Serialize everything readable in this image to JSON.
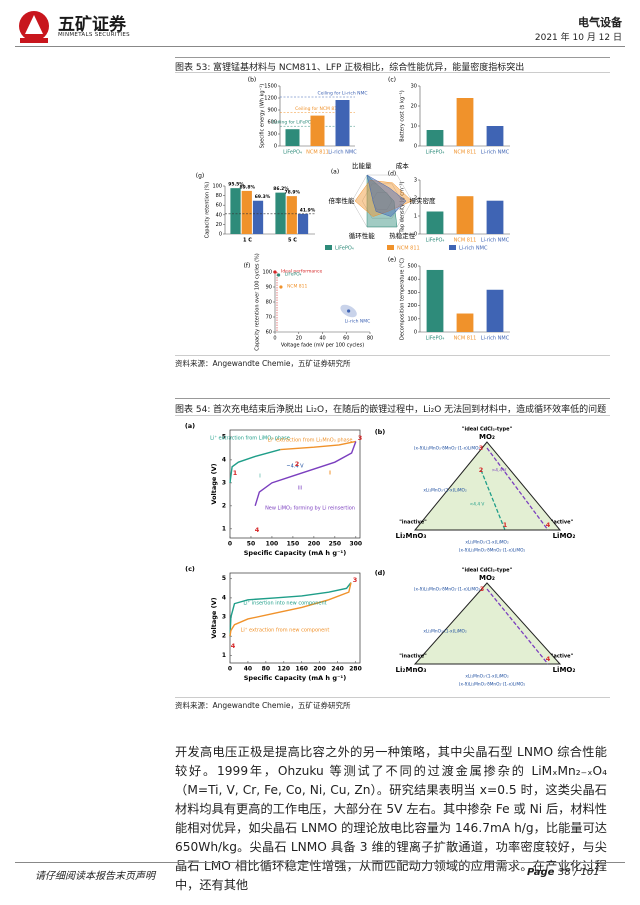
{
  "header": {
    "company": "五矿证券",
    "company_en": "MINMETALS SECURITIES",
    "sector": "电气设备",
    "date": "2021 年 10 月 12 日"
  },
  "figure53": {
    "label": "图表 53:",
    "title": "富锂锰基材料与 NCM811、LFP 正极相比，综合性能优异，能量密度指标突出",
    "source": "资料来源：Angewandte Chemie，五矿证券研究所",
    "legend": [
      "LiFePO₄",
      "NCM 811",
      "Li-rich NMC"
    ],
    "colors": [
      "#2e8b7a",
      "#f0922b",
      "#3f64b4"
    ],
    "bar_panels": [
      {
        "id": "(b)",
        "ylabel": "Specific energy (Wh kg⁻¹)",
        "ylim": [
          0,
          1500
        ],
        "yticks": [
          0,
          300,
          600,
          900,
          1200,
          1500
        ],
        "categories": [
          "LiFePO₄",
          "NCM 811",
          "Li-rich NMC"
        ],
        "values": [
          420,
          760,
          1150
        ],
        "notes": [
          "Ceiling for LiFePO₄",
          "Ceiling for NCM 811",
          "Ceiling for Li-rich NMC"
        ]
      },
      {
        "id": "(c)",
        "ylabel": "Battery cost ($ kg⁻¹)",
        "ylim": [
          0,
          30
        ],
        "yticks": [
          0,
          10,
          20,
          30
        ],
        "categories": [
          "LiFePO₄",
          "NCM 811",
          "Li-rich NMC"
        ],
        "values": [
          8,
          24,
          10
        ]
      },
      {
        "id": "(d)",
        "ylabel": "Tap density (g cm⁻³)",
        "ylim": [
          0,
          3
        ],
        "yticks": [
          0,
          1,
          2,
          3
        ],
        "categories": [
          "LiFePO₄",
          "NCM 811",
          "Li-rich NMC"
        ],
        "values": [
          1.25,
          2.1,
          1.85
        ]
      },
      {
        "id": "(e)",
        "ylabel": "Decomposition temperature (°C)",
        "ylim": [
          0,
          500
        ],
        "yticks": [
          0,
          100,
          200,
          300,
          400,
          500
        ],
        "categories": [
          "LiFePO₄",
          "NCM 811",
          "Li-rich NMC"
        ],
        "values": [
          470,
          140,
          320
        ]
      }
    ],
    "radar": {
      "id": "(a)",
      "axes": [
        "比能量",
        "成本",
        "振实密度",
        "热稳定性",
        "循环性能",
        "倍率性能"
      ]
    },
    "retention": {
      "id": "(g)",
      "ylabel": "Capacity retention (%)",
      "ylim": [
        0,
        100
      ],
      "yticks": [
        0,
        20,
        40,
        60,
        80,
        100
      ],
      "groups": [
        "1 C",
        "5 C"
      ],
      "values": [
        [
          95.5,
          89.8,
          69.3
        ],
        [
          86.2,
          78.9,
          41.9
        ]
      ],
      "value_labels": [
        [
          "95.5%",
          "89.8%",
          "69.3%"
        ],
        [
          "86.2%",
          "78.9%",
          "41.9%"
        ]
      ]
    },
    "scatter": {
      "id": "(f)",
      "ylabel": "Capacity retention over 100 cycles (%)",
      "xlabel": "Voltage fade (mV per 100 cycles)",
      "xlim": [
        0,
        80
      ],
      "ylim": [
        60,
        100
      ],
      "xticks": [
        0,
        20,
        40,
        60,
        80
      ],
      "yticks": [
        60,
        70,
        80,
        90,
        100
      ],
      "points": [
        {
          "name": "Ideal performance",
          "x": 0,
          "y": 100,
          "color": "#d62728"
        },
        {
          "name": "LiFePO₄",
          "x": 3,
          "y": 98,
          "color": "#2e8b7a"
        },
        {
          "name": "NCM 811",
          "x": 5,
          "y": 90,
          "color": "#f0922b"
        },
        {
          "name": "Li-rich NMC",
          "x": 62,
          "y": 74,
          "color": "#3f64b4"
        }
      ]
    }
  },
  "figure54": {
    "label": "图表 54:",
    "title": "首次充电结束后浄脱出 Li₂O，在随后的嵌锂过程中，Li₂O 无法回到材料中，造成循环效率低的问题",
    "source": "资料来源：Angewandte Chemie，五矿证券研究所",
    "curve_panels": [
      {
        "id": "(a)",
        "ylabel": "Voltage (V)",
        "xlabel": "Specific Capacity (mA h g⁻¹)",
        "xlim": [
          0,
          310
        ],
        "ylim": [
          0.6,
          5.3
        ],
        "xticks": [
          0,
          50,
          100,
          150,
          200,
          250,
          300
        ],
        "yticks": [
          1,
          2,
          3,
          4,
          5
        ],
        "series": [
          {
            "color": "#1f9e89",
            "x": [
              0,
              5,
              20,
              60,
              120
            ],
            "y": [
              3.0,
              3.7,
              3.9,
              4.15,
              4.45
            ]
          },
          {
            "color": "#f0922b",
            "x": [
              120,
              200,
              260,
              300
            ],
            "y": [
              4.45,
              4.55,
              4.65,
              4.8
            ]
          },
          {
            "color": "#7b3fbf",
            "x": [
              300,
              290,
              250,
              200,
              150,
              100,
              70,
              60
            ],
            "y": [
              4.8,
              4.3,
              3.9,
              3.6,
              3.3,
              3.0,
              2.6,
              2.0
            ]
          }
        ],
        "notes": [
          "Li⁺ extraction from LiMO₂ phase",
          "Li⁺ extraction from Li₂MnO₃ phase",
          "~4.4 V",
          "I",
          "II",
          "III",
          "New LiMO₂ forming by Li reinsertion"
        ],
        "points": [
          "1",
          "2",
          "3",
          "4"
        ]
      },
      {
        "id": "(c)",
        "ylabel": "Voltage (V)",
        "xlabel": "Specific Capacity (mA h g⁻¹)",
        "xlim": [
          0,
          290
        ],
        "ylim": [
          0.6,
          5.3
        ],
        "xticks": [
          0,
          40,
          80,
          120,
          160,
          200,
          240,
          280
        ],
        "yticks": [
          1,
          2,
          3,
          4,
          5
        ],
        "series": [
          {
            "color": "#1f9e89",
            "x": [
              0,
              2,
              10,
              40,
              100,
              160,
              220,
              260,
              270
            ],
            "y": [
              2.0,
              3.0,
              3.7,
              3.9,
              4.0,
              4.1,
              4.3,
              4.5,
              4.8
            ]
          },
          {
            "color": "#f0922b",
            "x": [
              270,
              265,
              220,
              160,
              100,
              40,
              10,
              2,
              0
            ],
            "y": [
              4.8,
              4.3,
              3.9,
              3.5,
              3.2,
              2.9,
              2.6,
              2.3,
              2.0
            ]
          }
        ],
        "notes": [
          "Li⁺ insertion into new component",
          "Li⁺ extraction from new component"
        ],
        "points": [
          "3",
          "4"
        ]
      }
    ],
    "triangles": [
      {
        "id": "(b)",
        "top": "MO₂",
        "left": "Li₂MnO₃",
        "right": "LiMO₂",
        "top_note": "\"ideal CdCl₂-type\"",
        "left_note": "\"inactive\"",
        "right_note": "\"active\"",
        "labels": [
          "(x-δ)Li₂MnO₃·δMnO₂·(1-x)LiMO₂",
          "xLi₂MnO₃·(1-x)LiMO₂",
          "xLi₂MnO₃·(1-x)LiMO₂",
          "(x-δ)Li₂MnO₃·δMnO₂·(1-x)LiMO₂",
          ">4.4 V",
          "<4.4 V"
        ],
        "points": [
          "1",
          "2",
          "3",
          "4"
        ]
      },
      {
        "id": "(d)",
        "top": "MO₂",
        "left": "Li₂MnO₃",
        "right": "LiMO₂",
        "top_note": "\"ideal CdCl₂-type\"",
        "left_note": "\"inactive\"",
        "right_note": "\"active\"",
        "labels": [
          "(x-δ)Li₂MnO₃·δMnO₂·(1-x)LiMO₂",
          "xLi₂MnO₃·(1-x)LiMO₂",
          "xLi₂MnO₃·(1-x)LiMO₂",
          "(x-δ)Li₂MnO₃·δMnO₂·(1-x)LiMO₂"
        ],
        "points": [
          "3",
          "4"
        ]
      }
    ]
  },
  "body": {
    "paragraph": "开发高电压正极是提高比容之外的另一种策略，其中尖晶石型 LNMO 综合性能较好。1999年，Ohzuku 等测试了不同的过渡金属掺杂的 LiMₓMn₂₋ₓO₄（M=Ti, V, Cr, Fe, Co, Ni, Cu, Zn）。研究结果表明当 x=0.5 时，这类尖晶石材料均具有更高的工作电压，大部分在 5V 左右。其中掺杂 Fe 或 Ni 后，材料性能相对优异，如尖晶石 LNMO 的理论放电比容量为 146.7mA h/g，比能量可达 650Wh/kg。尖晶石 LNMO 具备 3 维的锂离子扩散通道，功率密度较好，与尖晶石 LMO 相比循环稳定性增强，从而匹配动力领域的应用需求。在产业化过程中，还有其他"
  },
  "footer": {
    "notice": "请仔细阅读本报告末页声明",
    "page": "Page",
    "page_num": "38 / 101"
  }
}
